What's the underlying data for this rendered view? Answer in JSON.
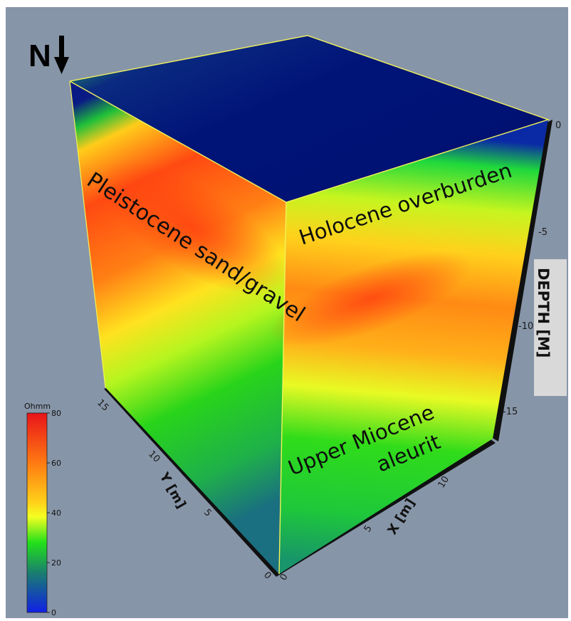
{
  "north_arrow": {
    "label": "N",
    "icon": "down-arrow-icon"
  },
  "layers": {
    "holocene": "Holocene overburden",
    "pleistocene": "Pleistocene sand/gravel",
    "miocene_line1": "Upper Miocene",
    "miocene_line2": "aleurit"
  },
  "axes": {
    "depth": {
      "title": "DEPTH [M]",
      "ticks": [
        "0",
        "-5",
        "-10",
        "-15"
      ]
    },
    "x": {
      "title": "X [m]",
      "ticks": [
        "0",
        "5",
        "10"
      ]
    },
    "y": {
      "title": "Y [m]",
      "ticks": [
        "0",
        "5",
        "10",
        "15"
      ]
    }
  },
  "colorbar": {
    "unit": "Ohmm",
    "ticks": [
      "80",
      "60",
      "40",
      "20",
      "0"
    ],
    "colors": [
      "#e8141a",
      "#ff7a12",
      "#ffd21a",
      "#f4ff22",
      "#22e01a",
      "#1a7f6e",
      "#1020e6"
    ]
  },
  "colors": {
    "background": "#8795a8",
    "top_face": "#00137a",
    "cube_edge": "#f2f25a"
  }
}
